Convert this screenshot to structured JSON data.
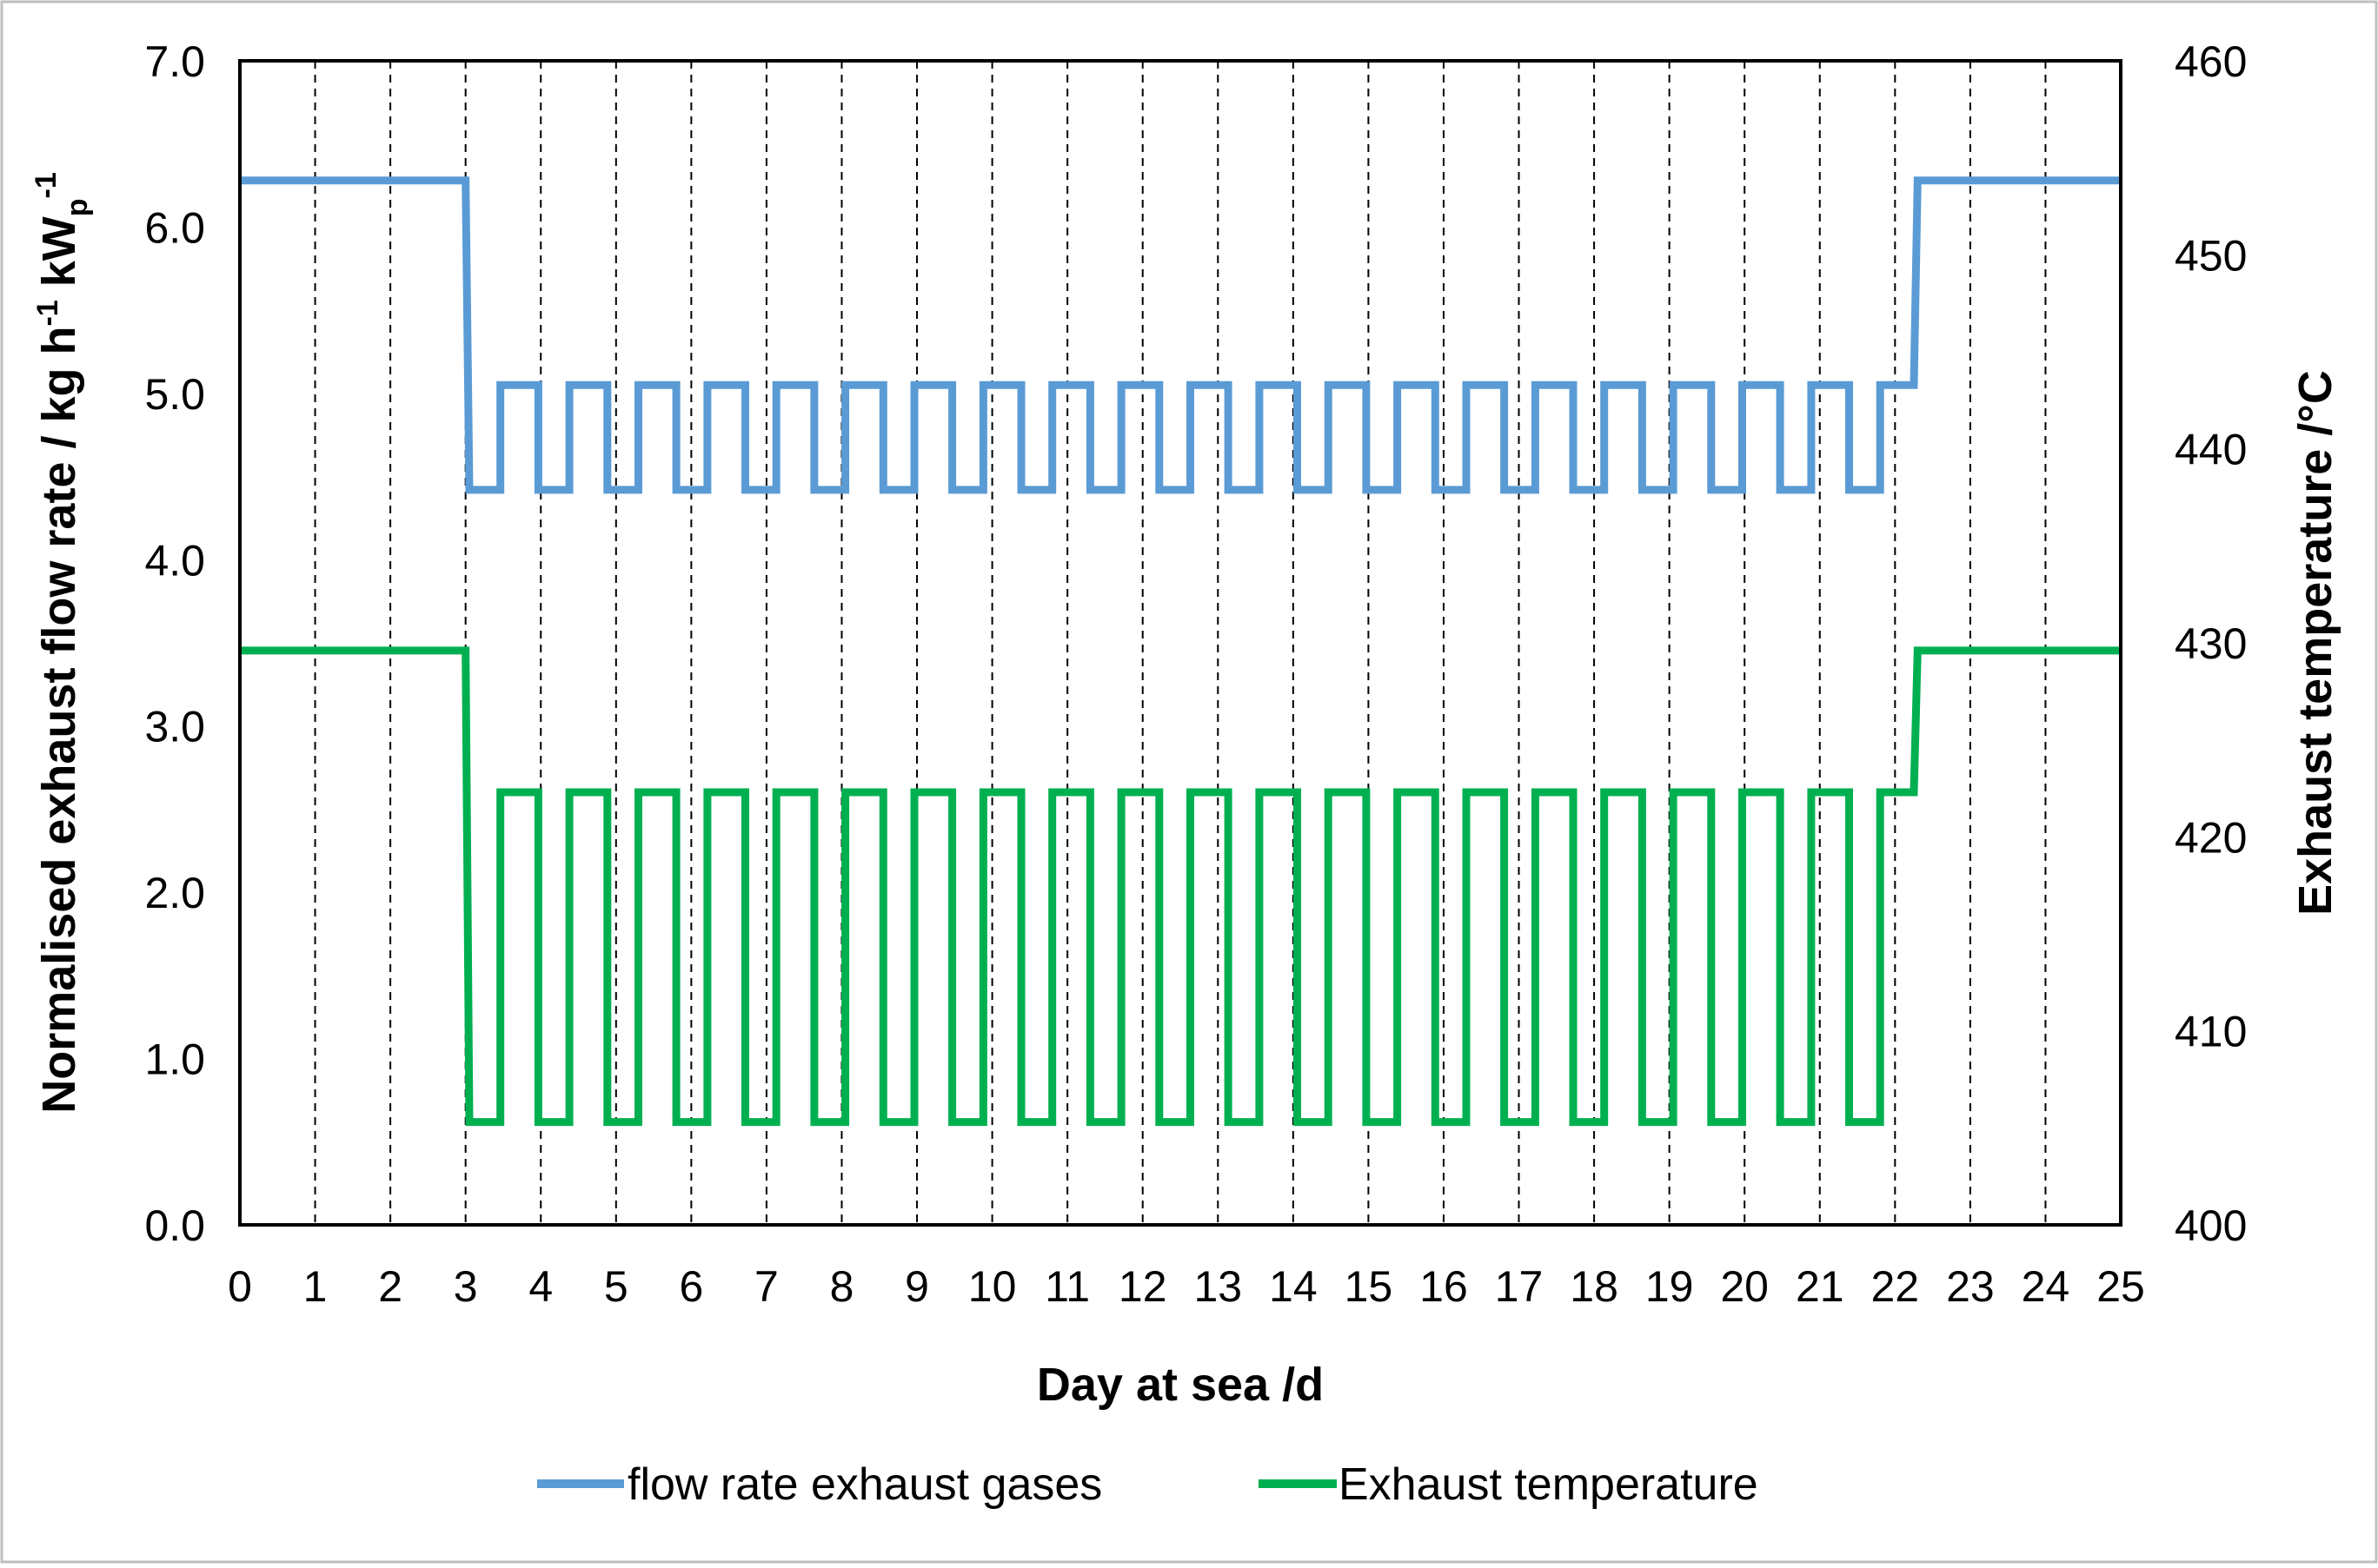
{
  "chart_data": {
    "type": "line",
    "title": "",
    "xlabel": "Day at sea /d",
    "ylabel_parts": {
      "p1": "Normalised exhaust flow rate / kg h",
      "p2": "-1",
      "p3": " kW",
      "p4": "p",
      "p5": "-1"
    },
    "y2label": "Exhaust temperature /°C",
    "xlim": [
      0,
      25
    ],
    "ylim": [
      0,
      7
    ],
    "y2lim": [
      400,
      460
    ],
    "x_ticks": [
      "0",
      "1",
      "2",
      "3",
      "4",
      "5",
      "6",
      "7",
      "8",
      "9",
      "10",
      "11",
      "12",
      "13",
      "14",
      "15",
      "16",
      "17",
      "18",
      "19",
      "20",
      "21",
      "22",
      "23",
      "24",
      "25"
    ],
    "y_ticks": [
      "0.0",
      "1.0",
      "2.0",
      "3.0",
      "4.0",
      "5.0",
      "6.0",
      "7.0"
    ],
    "y2_ticks": [
      "400",
      "410",
      "420",
      "430",
      "440",
      "450",
      "460"
    ],
    "grid": "vertical-dashed",
    "legend_position": "bottom",
    "legend": [
      "flow rate exhaust gases",
      "Exhaust temperature"
    ],
    "series": [
      {
        "name": "flow rate exhaust gases",
        "axis": "left",
        "color": "#5b9bd5",
        "step": true,
        "start": [
          0,
          6.28
        ],
        "drop_at": 3.0,
        "low": 4.42,
        "high": 5.05,
        "cycle_start": 3.05,
        "cycle_period": 0.917,
        "low_fraction": 0.45,
        "last_low_end": 21.85,
        "final_high_end": 22.3,
        "end_value": 6.28,
        "end_x": 25
      },
      {
        "name": "Exhaust temperature",
        "axis": "right",
        "color": "#00b050",
        "step": true,
        "start": [
          0,
          429.6
        ],
        "drop_at": 3.0,
        "low": 405.3,
        "high": 422.3,
        "cycle_start": 3.05,
        "cycle_period": 0.917,
        "low_fraction": 0.45,
        "last_low_end": 21.85,
        "final_high_end": 22.3,
        "end_value": 429.6,
        "end_x": 25
      }
    ]
  }
}
